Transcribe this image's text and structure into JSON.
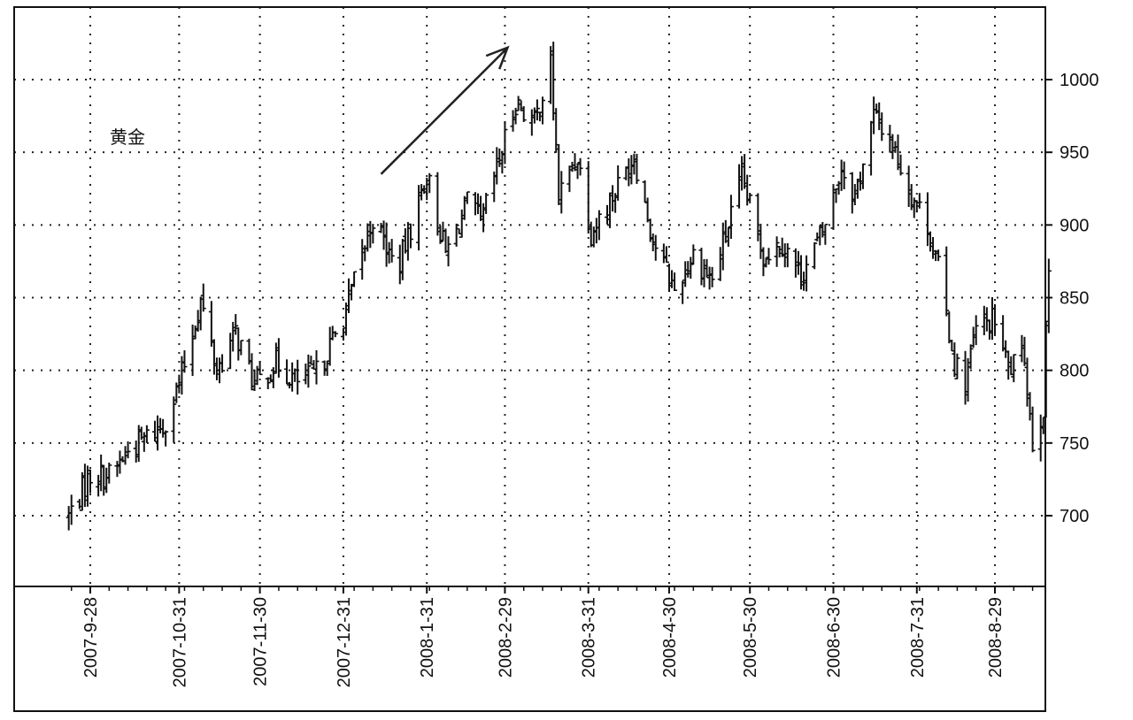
{
  "chart_data": {
    "type": "ohlc",
    "title": "",
    "xlabel": "",
    "ylabel": "",
    "annotation": "黄金",
    "ylim": [
      660,
      1035
    ],
    "y_ticks": [
      700,
      750,
      800,
      850,
      900,
      950,
      1000
    ],
    "x_date_ticks": [
      "2007-9-28",
      "2007-10-31",
      "2007-11-30",
      "2007-12-31",
      "2008-1-31",
      "2008-2-29",
      "2008-3-31",
      "2008-4-30",
      "2008-5-30",
      "2008-6-30",
      "2008-7-31",
      "2008-8-29"
    ],
    "grid": true,
    "trend_arrow": {
      "from": [
        "2008-1-14",
        935
      ],
      "to": [
        "2008-3-1",
        1022
      ]
    },
    "anchors": [
      [
        "2007-9-20",
        700
      ],
      [
        "2007-9-28",
        728
      ],
      [
        "2007-10-6",
        728
      ],
      [
        "2007-10-12",
        745
      ],
      [
        "2007-10-25",
        762
      ],
      [
        "2007-10-31",
        790
      ],
      [
        "2007-11-8",
        848
      ],
      [
        "2007-11-14",
        800
      ],
      [
        "2007-11-21",
        826
      ],
      [
        "2007-11-28",
        790
      ],
      [
        "2007-12-6",
        805
      ],
      [
        "2007-12-14",
        792
      ],
      [
        "2007-12-21",
        798
      ],
      [
        "2007-12-31",
        835
      ],
      [
        "2008-1-4",
        860
      ],
      [
        "2008-1-11",
        905
      ],
      [
        "2008-1-20",
        868
      ],
      [
        "2008-1-31",
        935
      ],
      [
        "2008-2-7",
        880
      ],
      [
        "2008-2-16",
        918
      ],
      [
        "2008-2-20",
        900
      ],
      [
        "2008-2-27",
        945
      ],
      [
        "2008-3-4",
        985
      ],
      [
        "2008-3-11",
        970
      ],
      [
        "2008-3-17",
        1010
      ],
      [
        "2008-3-20",
        920
      ],
      [
        "2008-3-27",
        948
      ],
      [
        "2008-4-1",
        895
      ],
      [
        "2008-4-9",
        920
      ],
      [
        "2008-4-17",
        948
      ],
      [
        "2008-4-24",
        890
      ],
      [
        "2008-5-2",
        855
      ],
      [
        "2008-5-9",
        880
      ],
      [
        "2008-5-16",
        862
      ],
      [
        "2008-5-27",
        932
      ],
      [
        "2008-6-4",
        880
      ],
      [
        "2008-6-11",
        888
      ],
      [
        "2008-6-18",
        865
      ],
      [
        "2008-6-26",
        895
      ],
      [
        "2008-7-3",
        940
      ],
      [
        "2008-7-8",
        920
      ],
      [
        "2008-7-15",
        975
      ],
      [
        "2008-7-21",
        960
      ],
      [
        "2008-7-28",
        925
      ],
      [
        "2008-8-4",
        900
      ],
      [
        "2008-8-8",
        870
      ],
      [
        "2008-8-14",
        805
      ],
      [
        "2008-8-18",
        792
      ],
      [
        "2008-8-22",
        828
      ],
      [
        "2008-8-29",
        835
      ],
      [
        "2008-9-3",
        800
      ],
      [
        "2008-9-9",
        810
      ],
      [
        "2008-9-12",
        750
      ],
      [
        "2008-9-16",
        775
      ],
      [
        "2008-9-18",
        870
      ]
    ]
  }
}
